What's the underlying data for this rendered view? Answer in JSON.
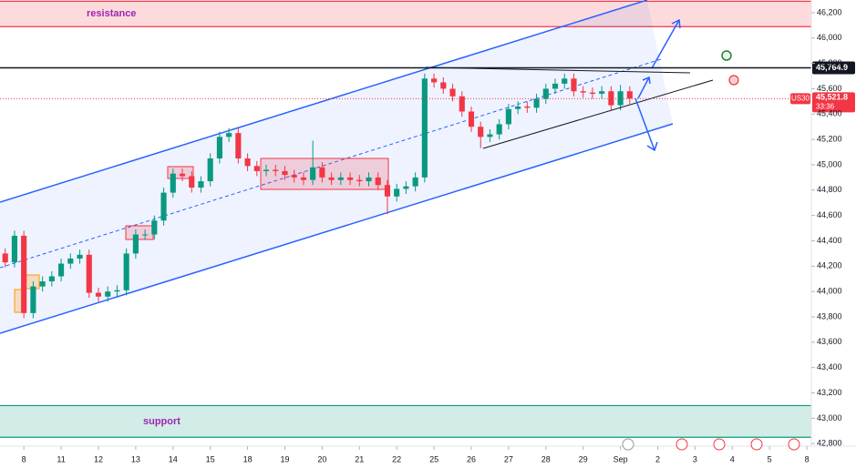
{
  "chart_data": {
    "type": "candlestick",
    "symbol": "US30",
    "ylim": [
      42780,
      46300
    ],
    "xlim": [
      -0.64,
      21.12
    ],
    "yticks": [
      {
        "value": 42800,
        "label": "42,800"
      },
      {
        "value": 43000,
        "label": "43,000"
      },
      {
        "value": 43200,
        "label": "43,200"
      },
      {
        "value": 43400,
        "label": "43,400"
      },
      {
        "value": 43600,
        "label": "43,600"
      },
      {
        "value": 43800,
        "label": "43,800"
      },
      {
        "value": 44000,
        "label": "44,000"
      },
      {
        "value": 44200,
        "label": "44,200"
      },
      {
        "value": 44400,
        "label": "44,400"
      },
      {
        "value": 44600,
        "label": "44,600"
      },
      {
        "value": 44800,
        "label": "44,800"
      },
      {
        "value": 45000,
        "label": "45,000"
      },
      {
        "value": 45200,
        "label": "45,200"
      },
      {
        "value": 45400,
        "label": "45,400"
      },
      {
        "value": 45600,
        "label": "45,600"
      },
      {
        "value": 45800,
        "label": "45,800"
      },
      {
        "value": 46000,
        "label": "46,000"
      },
      {
        "value": 46200,
        "label": "46,200"
      }
    ],
    "xticks": [
      {
        "value": 0,
        "label": "8"
      },
      {
        "value": 1,
        "label": "11"
      },
      {
        "value": 2,
        "label": "12"
      },
      {
        "value": 3,
        "label": "13"
      },
      {
        "value": 4,
        "label": "14"
      },
      {
        "value": 5,
        "label": "15"
      },
      {
        "value": 6,
        "label": "18"
      },
      {
        "value": 7,
        "label": "19"
      },
      {
        "value": 8,
        "label": "20"
      },
      {
        "value": 9,
        "label": "21"
      },
      {
        "value": 10,
        "label": "22"
      },
      {
        "value": 11,
        "label": "25"
      },
      {
        "value": 12,
        "label": "26"
      },
      {
        "value": 13,
        "label": "27"
      },
      {
        "value": 14,
        "label": "28"
      },
      {
        "value": 15,
        "label": "29"
      },
      {
        "value": 16,
        "label": "Sep"
      },
      {
        "value": 17,
        "label": "2"
      },
      {
        "value": 18,
        "label": "3"
      },
      {
        "value": 19,
        "label": "4"
      },
      {
        "value": 20,
        "label": "5"
      },
      {
        "value": 21,
        "label": "8"
      }
    ],
    "up_color": "#089981",
    "down_color": "#f23645",
    "x": [
      -0.5,
      -0.25,
      0,
      0.25,
      0.5,
      0.75,
      1,
      1.25,
      1.5,
      1.75,
      2,
      2.25,
      2.5,
      2.75,
      3,
      3.25,
      3.5,
      3.75,
      4,
      4.25,
      4.5,
      4.75,
      5,
      5.25,
      5.5,
      5.75,
      6,
      6.25,
      6.5,
      6.75,
      7,
      7.25,
      7.5,
      7.75,
      8,
      8.25,
      8.5,
      8.75,
      9,
      9.25,
      9.5,
      9.75,
      10,
      10.25,
      10.5,
      10.75,
      11,
      11.25,
      11.5,
      11.75,
      12,
      12.25,
      12.5,
      12.75,
      13,
      13.25,
      13.5,
      13.75,
      14,
      14.25,
      14.5,
      14.75,
      15,
      15.25,
      15.5,
      15.75,
      16,
      16.25
    ],
    "ohlc": [
      [
        44300,
        44340,
        44190,
        44230
      ],
      [
        44230,
        44480,
        44190,
        44440
      ],
      [
        44440,
        44480,
        43790,
        43830
      ],
      [
        43830,
        44080,
        43790,
        44040
      ],
      [
        44040,
        44120,
        44000,
        44080
      ],
      [
        44080,
        44160,
        44040,
        44120
      ],
      [
        44120,
        44260,
        44080,
        44220
      ],
      [
        44220,
        44300,
        44180,
        44260
      ],
      [
        44260,
        44330,
        44220,
        44290
      ],
      [
        44290,
        44330,
        43950,
        43990
      ],
      [
        43990,
        44030,
        43920,
        43960
      ],
      [
        43960,
        44040,
        43920,
        44000
      ],
      [
        44000,
        44050,
        43960,
        44010
      ],
      [
        44010,
        44340,
        43970,
        44300
      ],
      [
        44300,
        44490,
        44260,
        44450
      ],
      [
        44450,
        44490,
        44410,
        44450
      ],
      [
        44450,
        44600,
        44410,
        44560
      ],
      [
        44560,
        44820,
        44520,
        44780
      ],
      [
        44780,
        44970,
        44740,
        44930
      ],
      [
        44930,
        44970,
        44870,
        44910
      ],
      [
        44910,
        44950,
        44780,
        44820
      ],
      [
        44820,
        44910,
        44780,
        44870
      ],
      [
        44870,
        45090,
        44830,
        45050
      ],
      [
        45050,
        45260,
        45010,
        45220
      ],
      [
        45220,
        45290,
        45180,
        45250
      ],
      [
        45250,
        45290,
        45010,
        45050
      ],
      [
        45050,
        45090,
        44950,
        44990
      ],
      [
        44990,
        45030,
        44910,
        44950
      ],
      [
        44950,
        45000,
        44910,
        44960
      ],
      [
        44960,
        45000,
        44910,
        44950
      ],
      [
        44950,
        44990,
        44880,
        44920
      ],
      [
        44920,
        44960,
        44860,
        44900
      ],
      [
        44900,
        44940,
        44840,
        44880
      ],
      [
        44880,
        45190,
        44840,
        44980
      ],
      [
        44980,
        45020,
        44860,
        44900
      ],
      [
        44900,
        44940,
        44840,
        44880
      ],
      [
        44880,
        44940,
        44840,
        44900
      ],
      [
        44900,
        44940,
        44840,
        44880
      ],
      [
        44880,
        44920,
        44830,
        44870
      ],
      [
        44870,
        44940,
        44830,
        44900
      ],
      [
        44900,
        44940,
        44800,
        44840
      ],
      [
        44840,
        44880,
        44610,
        44750
      ],
      [
        44750,
        44850,
        44710,
        44810
      ],
      [
        44810,
        44870,
        44770,
        44830
      ],
      [
        44830,
        44940,
        44790,
        44900
      ],
      [
        44900,
        45720,
        44860,
        45680
      ],
      [
        45680,
        45720,
        45610,
        45650
      ],
      [
        45650,
        45690,
        45560,
        45600
      ],
      [
        45600,
        45640,
        45500,
        45540
      ],
      [
        45540,
        45580,
        45380,
        45420
      ],
      [
        45420,
        45460,
        45260,
        45300
      ],
      [
        45300,
        45340,
        45130,
        45220
      ],
      [
        45220,
        45280,
        45180,
        45240
      ],
      [
        45240,
        45360,
        45200,
        45320
      ],
      [
        45320,
        45480,
        45280,
        45440
      ],
      [
        45440,
        45500,
        45400,
        45460
      ],
      [
        45460,
        45500,
        45410,
        45450
      ],
      [
        45450,
        45560,
        45410,
        45520
      ],
      [
        45520,
        45640,
        45480,
        45600
      ],
      [
        45600,
        45680,
        45560,
        45640
      ],
      [
        45640,
        45720,
        45600,
        45680
      ],
      [
        45680,
        45720,
        45540,
        45580
      ],
      [
        45580,
        45620,
        45530,
        45570
      ],
      [
        45570,
        45610,
        45520,
        45560
      ],
      [
        45560,
        45620,
        45520,
        45580
      ],
      [
        45580,
        45620,
        45430,
        45470
      ],
      [
        45470,
        45630,
        45430,
        45580
      ],
      [
        45580,
        45620,
        45480,
        45521.8
      ]
    ],
    "last_label": "45,521.8",
    "countdown": "33:36",
    "level": 45764.9,
    "level_label": "45,764.9",
    "resistance": {
      "label": "resistance",
      "range": [
        46090,
        46290
      ]
    },
    "support": {
      "label": "support",
      "range": [
        42850,
        43100
      ]
    }
  }
}
